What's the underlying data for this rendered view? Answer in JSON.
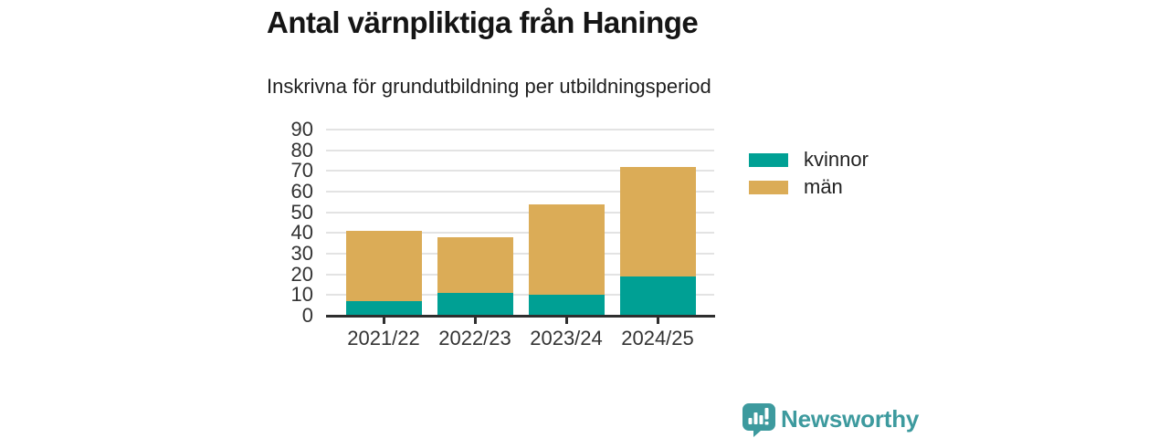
{
  "header": {
    "title": "Antal värnpliktiga från Haninge",
    "subtitle": "Inskrivna för grundutbildning per utbildningsperiod"
  },
  "chart_data": {
    "type": "bar",
    "stacked": true,
    "title": "Antal värnpliktiga från Haninge",
    "subtitle": "Inskrivna för grundutbildning per utbildningsperiod",
    "categories": [
      "2021/22",
      "2022/23",
      "2023/24",
      "2024/25"
    ],
    "series": [
      {
        "name": "kvinnor",
        "color": "#00a094",
        "values": [
          7,
          11,
          10,
          19
        ]
      },
      {
        "name": "män",
        "color": "#dbac57",
        "values": [
          34,
          27,
          44,
          53
        ]
      }
    ],
    "totals": [
      41,
      38,
      54,
      72
    ],
    "ylim": [
      0,
      90
    ],
    "yticks": [
      0,
      10,
      20,
      30,
      40,
      50,
      60,
      70,
      80,
      90
    ],
    "grid": "horizontal",
    "legend_position": "right",
    "xlabel": "",
    "ylabel": ""
  },
  "colors": {
    "grid": "#e3e3e3",
    "axis": "#2e2e2e",
    "axis_text": "#333333",
    "brand": "#3d9a9e"
  },
  "footer": {
    "brand": "Newsworthy"
  }
}
